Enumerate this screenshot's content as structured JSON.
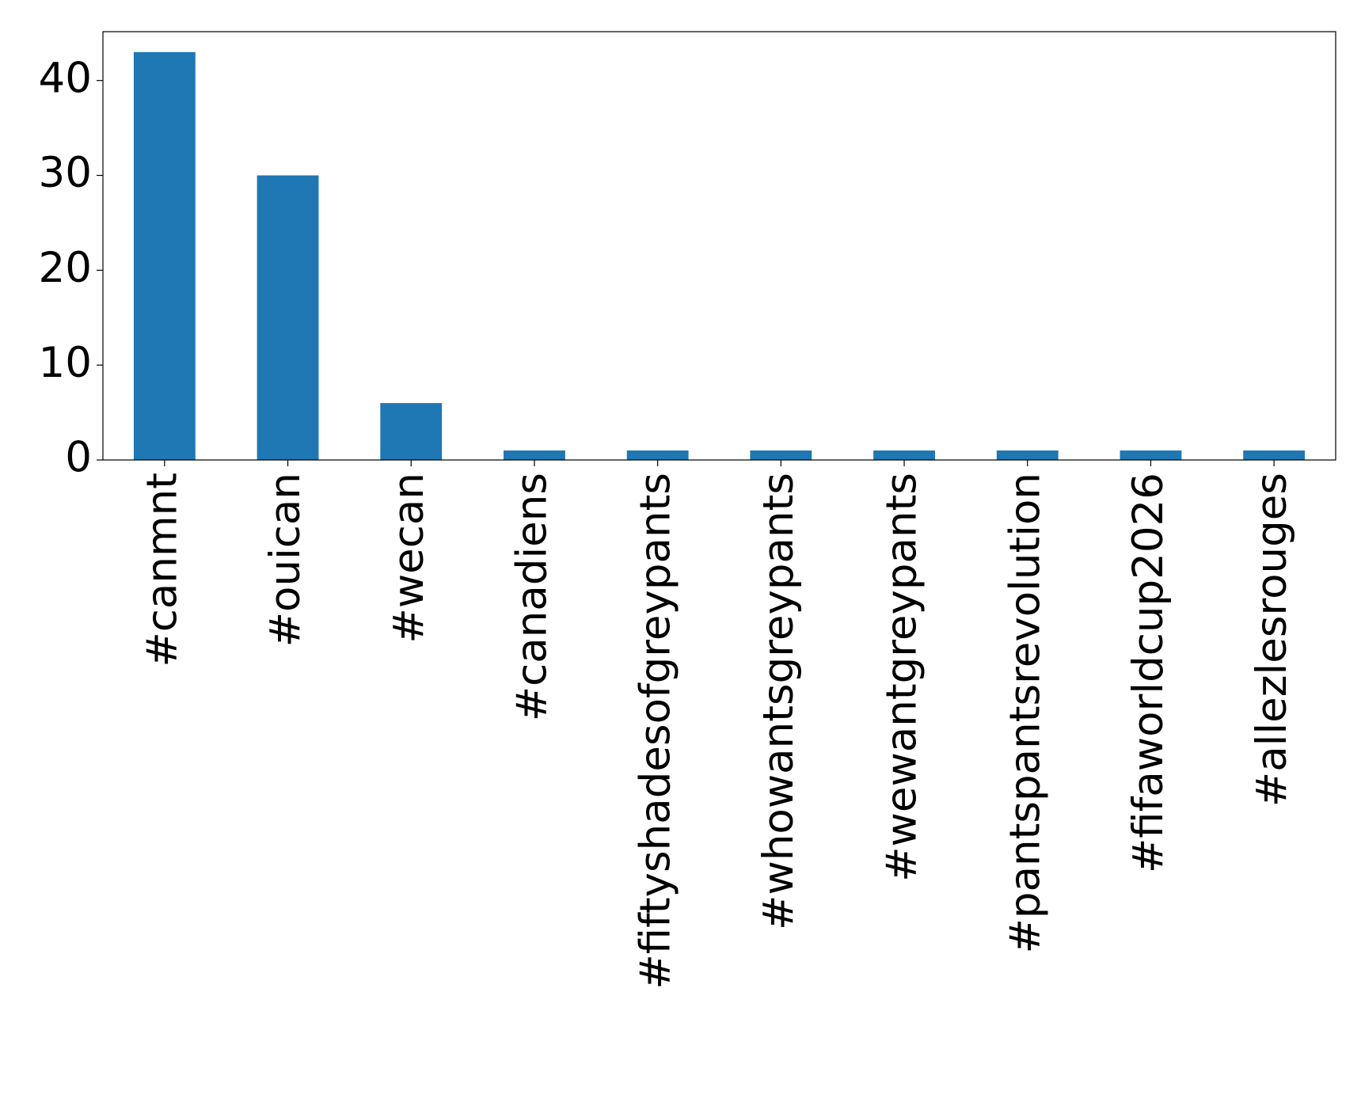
{
  "chart_data": {
    "type": "bar",
    "categories": [
      "#canmnt",
      "#ouican",
      "#wecan",
      "#canadiens",
      "#fiftyshadesofgreypants",
      "#whowantsgreypants",
      "#wewantgreypants",
      "#pantspantsrevolution",
      "#fifaworldcup2026",
      "#allezlesrouges"
    ],
    "values": [
      43,
      30,
      6,
      1,
      1,
      1,
      1,
      1,
      1,
      1
    ],
    "color": "#1f77b4",
    "ylim": [
      0,
      45.15
    ],
    "yticks": [
      0,
      10,
      20,
      30,
      40
    ],
    "grid": false
  }
}
